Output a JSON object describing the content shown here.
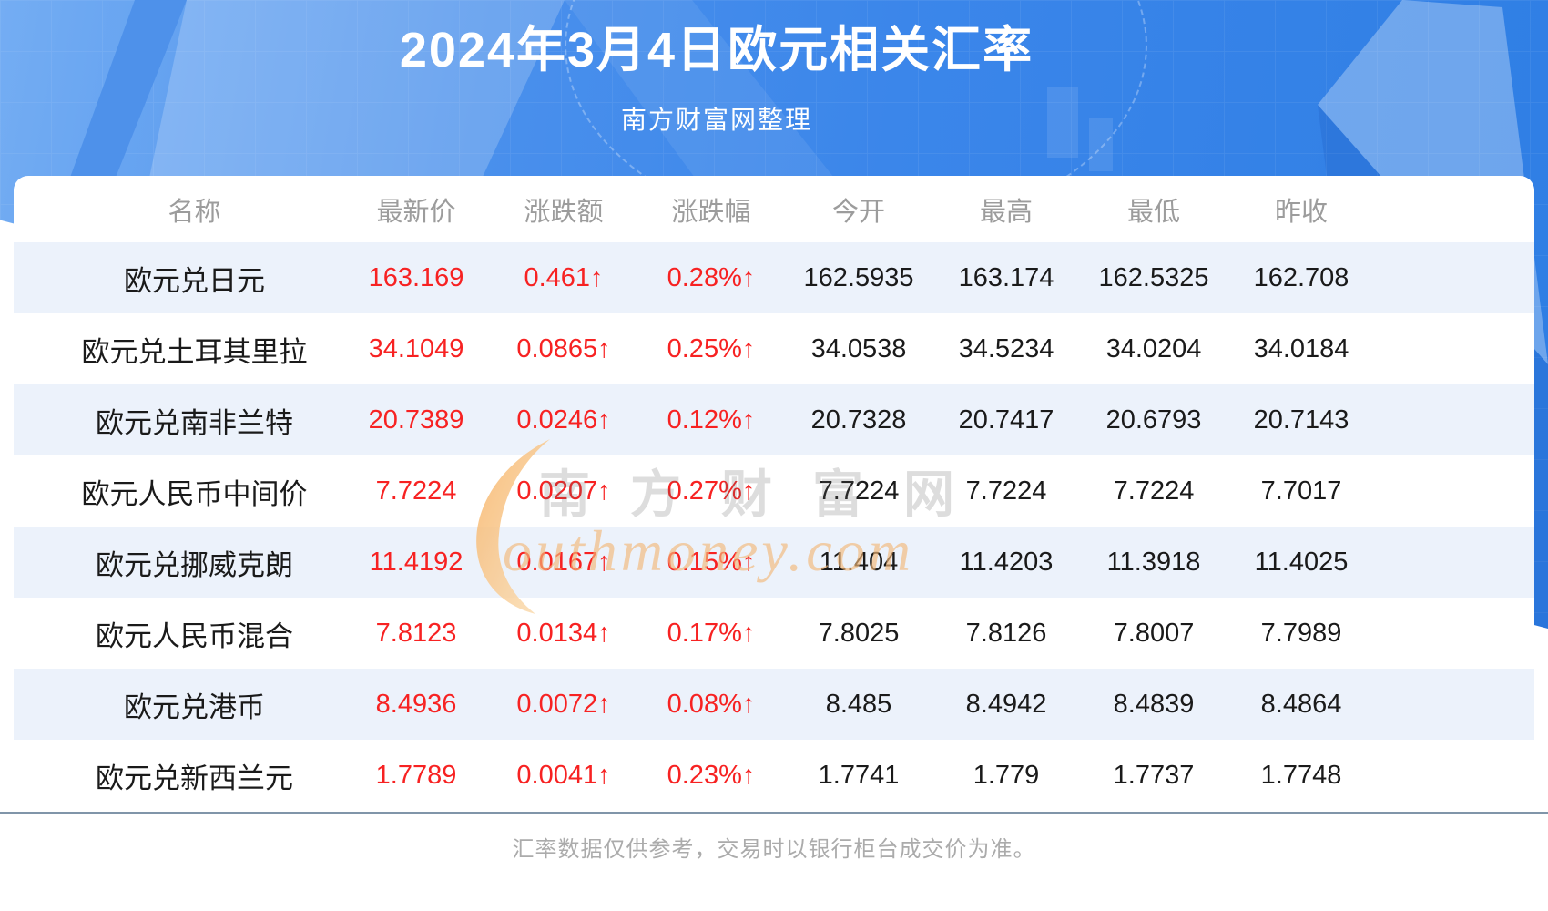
{
  "chart_data": {
    "type": "table",
    "title": "2024年3月4日欧元相关汇率",
    "subtitle": "南方财富网整理",
    "columns": [
      "名称",
      "最新价",
      "涨跌额",
      "涨跌幅",
      "今开",
      "最高",
      "最低",
      "昨收"
    ],
    "rows": [
      [
        "欧元兑日元",
        "163.169",
        "0.461↑",
        "0.28%↑",
        "162.5935",
        "163.174",
        "162.5325",
        "162.708"
      ],
      [
        "欧元兑土耳其里拉",
        "34.1049",
        "0.0865↑",
        "0.25%↑",
        "34.0538",
        "34.5234",
        "34.0204",
        "34.0184"
      ],
      [
        "欧元兑南非兰特",
        "20.7389",
        "0.0246↑",
        "0.12%↑",
        "20.7328",
        "20.7417",
        "20.6793",
        "20.7143"
      ],
      [
        "欧元人民币中间价",
        "7.7224",
        "0.0207↑",
        "0.27%↑",
        "7.7224",
        "7.7224",
        "7.7224",
        "7.7017"
      ],
      [
        "欧元兑挪威克朗",
        "11.4192",
        "0.0167↑",
        "0.15%↑",
        "11.404",
        "11.4203",
        "11.3918",
        "11.4025"
      ],
      [
        "欧元人民币混合",
        "7.8123",
        "0.0134↑",
        "0.17%↑",
        "7.8025",
        "7.8126",
        "7.8007",
        "7.7989"
      ],
      [
        "欧元兑港币",
        "8.4936",
        "0.0072↑",
        "0.08%↑",
        "8.485",
        "8.4942",
        "8.4839",
        "8.4864"
      ],
      [
        "欧元兑新西兰元",
        "1.7789",
        "0.0041↑",
        "0.23%↑",
        "1.7741",
        "1.779",
        "1.7737",
        "1.7748"
      ]
    ],
    "footnote": "汇率数据仅供参考，交易时以银行柜台成交价为准。",
    "legend_position": "none",
    "grid": false
  },
  "watermark": {
    "cn": "南方财富网",
    "en": "outhmoney.com"
  },
  "colors": {
    "header_blue_left": "#74adf3",
    "header_blue_right": "#2e7ee4",
    "stripe_row": "#ecf2fb",
    "up_red": "#f72222",
    "value_dark": "#1a1a1a",
    "column_header_gray": "#9c9c9c",
    "divider": "#8095a9",
    "footer_gray": "#ababab",
    "watermark_orange": "#f3b778"
  }
}
